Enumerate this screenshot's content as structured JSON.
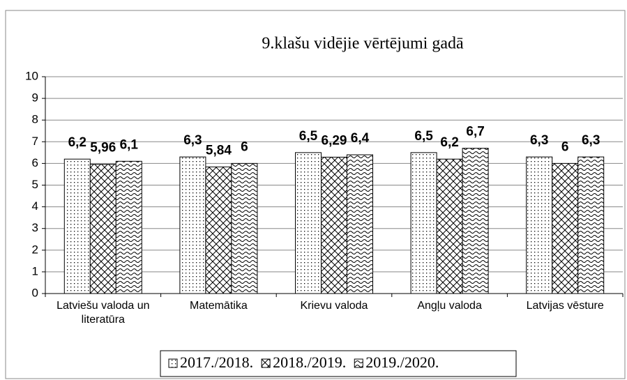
{
  "chart_data": {
    "type": "bar",
    "title": "9.klašu vidējie vērtējumi gadā",
    "categories": [
      "Latviešu valoda un literatūra",
      "Matemātika",
      "Krievu valoda",
      "Angļu valoda",
      "Latvijas vēsture"
    ],
    "series": [
      {
        "name": "2017./2018.",
        "color": "#000000",
        "pattern": "dots",
        "values": [
          6.2,
          6.3,
          6.5,
          6.5,
          6.3
        ],
        "value_labels": [
          "6,2",
          "6,3",
          "6,5",
          "6,5",
          "6,3"
        ]
      },
      {
        "name": "2018./2019.",
        "color": "#000000",
        "pattern": "cross",
        "values": [
          5.96,
          5.84,
          6.29,
          6.2,
          6
        ],
        "value_labels": [
          "5,96",
          "5,84",
          "6,29",
          "6,2",
          "6"
        ]
      },
      {
        "name": "2019./2020.",
        "color": "#000000",
        "pattern": "wave",
        "values": [
          6.1,
          6,
          6.4,
          6.7,
          6.3
        ],
        "value_labels": [
          "6,1",
          "6",
          "6,4",
          "6,7",
          "6,3"
        ]
      }
    ],
    "ylim": [
      0,
      10
    ],
    "yticks": [
      0,
      1,
      2,
      3,
      4,
      5,
      6,
      7,
      8,
      9,
      10
    ],
    "grid": true,
    "legend": "bottom"
  }
}
